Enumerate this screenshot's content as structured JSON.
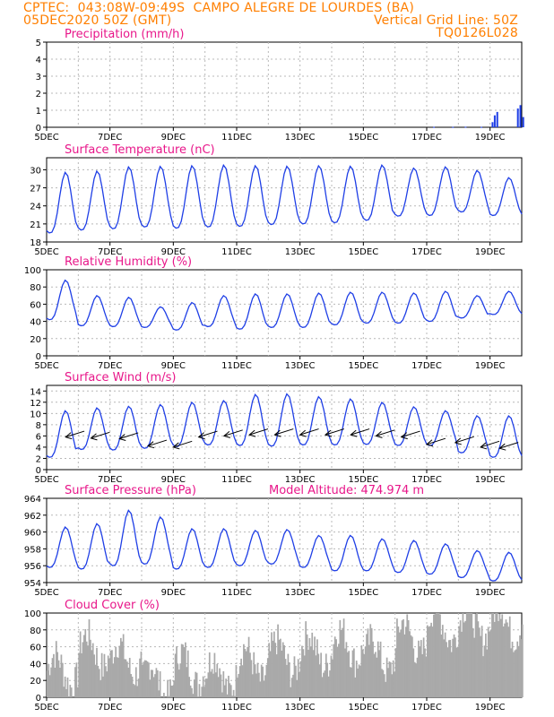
{
  "header": {
    "line1_left": "CPTEC:  043:08W-09:49S  CAMPO ALEGRE DE LOURDES (BA)",
    "line2_left": "05DEC2020 50Z (GMT)",
    "line2_right": "Vertical Grid Line: 50Z",
    "line3_right": "TQ0126L028"
  },
  "colors": {
    "header": "#ff7f00",
    "title": "#e8178a",
    "line": "#1f3fe6",
    "bar": "#1f3fe6",
    "cloud": "#a9a9a9",
    "wind_arrow": "#000000"
  },
  "x_ticks": [
    "5DEC",
    "7DEC",
    "9DEC",
    "11DEC",
    "13DEC",
    "15DEC",
    "17DEC",
    "19DEC"
  ],
  "x_tick_days": [
    0,
    2,
    4,
    6,
    8,
    10,
    12,
    14
  ],
  "chart_data": [
    {
      "type": "bar",
      "title": "Precipitation (mm/h)",
      "ylim": [
        0,
        5
      ],
      "yticks": [
        "0",
        "1",
        "2",
        "3",
        "4",
        "5"
      ],
      "series": [
        {
          "x": [
            12.2,
            12.8,
            13.2,
            13.7,
            14.05,
            14.12,
            14.2,
            14.85,
            14.93,
            15.02
          ],
          "values": [
            0.02,
            0.02,
            0.03,
            0.02,
            0.3,
            0.7,
            0.9,
            1.1,
            1.3,
            0.6
          ]
        }
      ]
    },
    {
      "type": "line",
      "title": "Surface Temperature (nC)",
      "ylim": [
        18,
        32
      ],
      "yticks": [
        "18",
        "21",
        "24",
        "27",
        "30"
      ],
      "daily_max": [
        29.6,
        29.8,
        30.5,
        30.6,
        30.7,
        30.8,
        30.7,
        30.6,
        30.7,
        30.6,
        30.8,
        30.3,
        30.5,
        29.9,
        28.7
      ],
      "daily_min": [
        19.5,
        20.0,
        20.2,
        20.5,
        20.3,
        20.5,
        20.6,
        20.9,
        21.0,
        21.2,
        21.6,
        22.3,
        22.4,
        23.0,
        22.4
      ]
    },
    {
      "type": "line",
      "title": "Relative Humidity (%)",
      "ylim": [
        0,
        100
      ],
      "yticks": [
        "0",
        "20",
        "40",
        "60",
        "80",
        "100"
      ],
      "daily_max": [
        88,
        70,
        68,
        57,
        62,
        70,
        72,
        72,
        73,
        74,
        74,
        73,
        75,
        70,
        75
      ],
      "daily_min": [
        42,
        35,
        34,
        33,
        30,
        34,
        31,
        33,
        33,
        36,
        38,
        38,
        40,
        44,
        48
      ]
    },
    {
      "type": "line",
      "title": "Surface Wind (m/s)",
      "ylim": [
        0,
        15
      ],
      "yticks": [
        "0",
        "2",
        "4",
        "6",
        "8",
        "10",
        "12",
        "14"
      ],
      "daily_max": [
        10.5,
        11.0,
        11.3,
        11.6,
        12.0,
        12.3,
        13.4,
        13.5,
        13.0,
        12.6,
        12.0,
        11.2,
        10.5,
        9.6,
        9.6
      ],
      "daily_min": [
        2.2,
        3.6,
        3.5,
        3.8,
        4.1,
        4.4,
        4.3,
        4.2,
        4.4,
        4.4,
        4.5,
        4.3,
        4.3,
        3.0,
        2.2
      ],
      "arrows": {
        "x": [
          0.6,
          1.4,
          2.3,
          3.2,
          4.0,
          4.8,
          5.6,
          6.4,
          7.2,
          8.0,
          8.8,
          9.6,
          10.4,
          11.2,
          12.0,
          12.9,
          13.7,
          14.3
        ],
        "speed": [
          5.8,
          5.6,
          5.5,
          4.2,
          4.0,
          5.8,
          6.0,
          6.2,
          6.2,
          6.2,
          6.2,
          6.2,
          6.0,
          5.8,
          4.5,
          4.8,
          4.0,
          3.8
        ]
      }
    },
    {
      "type": "line",
      "title": "Surface Pressure (hPa)",
      "annotation": "Model Altitude: 474.974 m",
      "ylim": [
        954,
        964
      ],
      "yticks": [
        "954",
        "956",
        "958",
        "960",
        "962",
        "964"
      ],
      "daily_max": [
        960.6,
        961.0,
        962.6,
        961.8,
        960.4,
        960.4,
        960.2,
        960.3,
        959.6,
        959.6,
        959.2,
        959.0,
        958.6,
        957.8,
        957.6
      ],
      "daily_min": [
        955.8,
        955.6,
        956.0,
        956.2,
        955.6,
        955.8,
        956.0,
        956.2,
        955.8,
        955.4,
        955.4,
        955.2,
        955.0,
        954.6,
        954.2
      ]
    },
    {
      "type": "bar",
      "title": "Cloud Cover (%)",
      "ylim": [
        0,
        100
      ],
      "yticks": [
        "0",
        "20",
        "40",
        "60",
        "80",
        "100"
      ],
      "daily_level": [
        32,
        55,
        45,
        20,
        35,
        28,
        40,
        48,
        55,
        62,
        50,
        70,
        85,
        88,
        90
      ]
    }
  ]
}
